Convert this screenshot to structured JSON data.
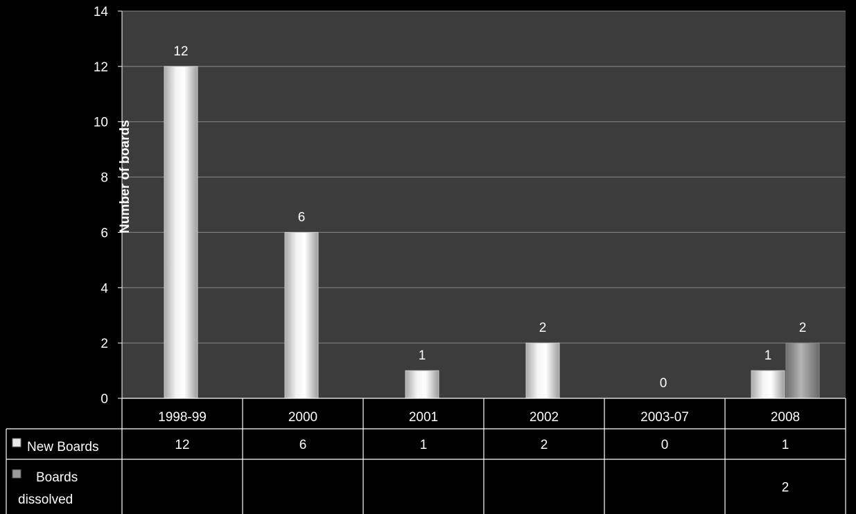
{
  "chart_data": {
    "type": "bar",
    "title": "",
    "xlabel": "",
    "ylabel": "Number of boards",
    "ylim": [
      0,
      14
    ],
    "ytick_step": 2,
    "grid": true,
    "legend": "data-table",
    "categories": [
      "1998-99",
      "2000",
      "2001",
      "2002",
      "2003-07",
      "2008"
    ],
    "series": [
      {
        "name": "New Boards",
        "values": [
          12,
          6,
          1,
          2,
          0,
          1
        ],
        "color": "#e8e8e8"
      },
      {
        "name": "Boards dissolved",
        "values": [
          null,
          null,
          null,
          null,
          null,
          2
        ],
        "color": "#9a9a9a"
      }
    ]
  },
  "colors": {
    "background": "#000000",
    "plot_area": "#3c3c3c",
    "gridline": "#8a8a8a",
    "axis": "#ffffff"
  }
}
